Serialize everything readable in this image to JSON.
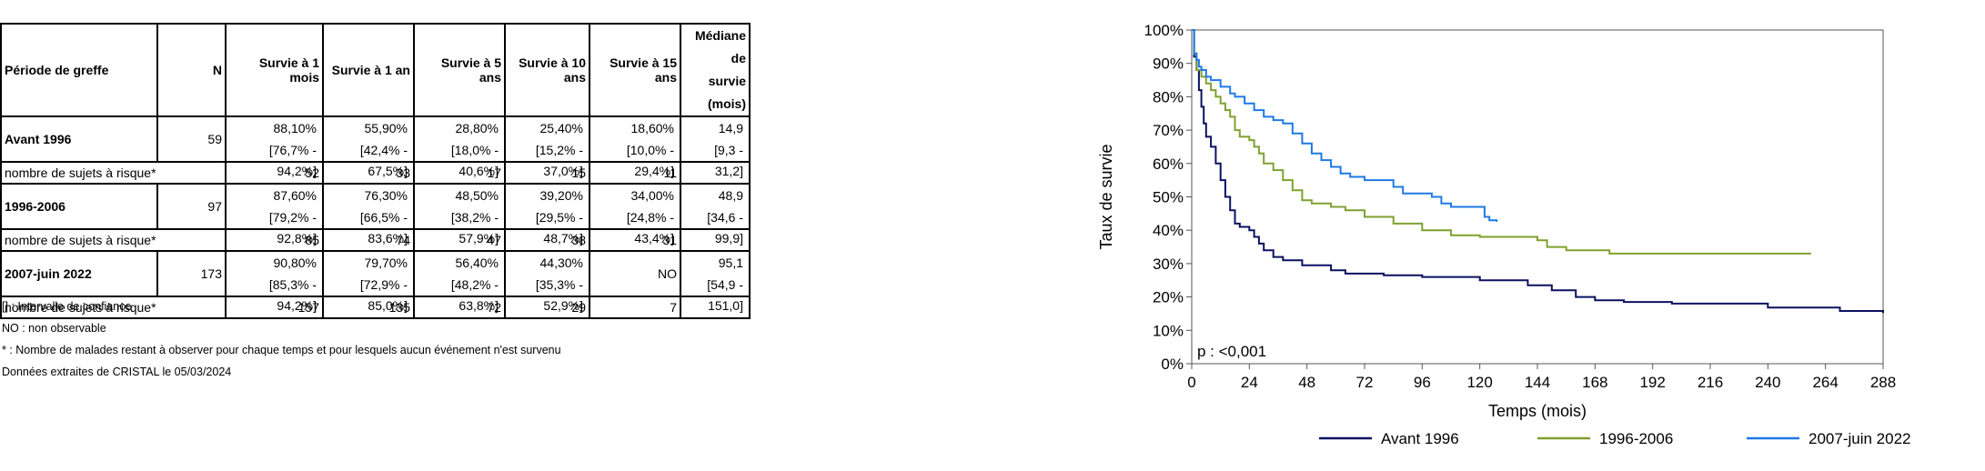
{
  "table": {
    "headers": [
      "Période de greffe",
      "N",
      "Survie à 1 mois",
      "Survie à 1 an",
      "Survie à 5 ans",
      "Survie à 10 ans",
      "Survie à 15 ans",
      "Médiane de",
      "survie (mois)"
    ],
    "risk_label": "nombre de sujets à risque*",
    "groups": [
      {
        "period": "Avant 1996",
        "n": "59",
        "estimates": [
          "88,10%",
          "55,90%",
          "28,80%",
          "25,40%",
          "18,60%",
          "14,9"
        ],
        "ci": [
          "[76,7% - 94,2%]",
          "[42,4% - 67,5%]",
          "[18,0% - 40,6%]",
          "[15,2% - 37,0%]",
          "[10,0% - 29,4%]",
          "[9,3 - 31,2]"
        ],
        "at_risk": [
          "52",
          "33",
          "17",
          "15",
          "11"
        ]
      },
      {
        "period": "1996-2006",
        "n": "97",
        "estimates": [
          "87,60%",
          "76,30%",
          "48,50%",
          "39,20%",
          "34,00%",
          "48,9"
        ],
        "ci": [
          "[79,2% - 92,8%]",
          "[66,5% - 83,6%]",
          "[38,2% - 57,9%]",
          "[29,5% - 48,7%]",
          "[24,8% - 43,4%]",
          "[34,6 - 99,9]"
        ],
        "at_risk": [
          "85",
          "74",
          "47",
          "38",
          "31"
        ]
      },
      {
        "period": "2007-juin 2022",
        "n": "173",
        "estimates": [
          "90,80%",
          "79,70%",
          "56,40%",
          "44,30%",
          "NO",
          "95,1"
        ],
        "ci": [
          "[85,3% - 94,2%]",
          "[72,9% - 85,0%]",
          "[48,2% - 63,8%]",
          "[35,3% - 52,9%]",
          "",
          "[54,9 - 151,0]"
        ],
        "at_risk": [
          "157",
          "135",
          "72",
          "29",
          "7"
        ]
      }
    ]
  },
  "notes": [
    "[] : Intervalle de confiance",
    "NO : non observable",
    "* : Nombre de malades restant à observer pour chaque temps et pour lesquels aucun événement n'est survenu",
    "Données extraites de CRISTAL le 05/03/2024"
  ],
  "chart_data": {
    "type": "line",
    "xlabel": "Temps (mois)",
    "ylabel": "Taux de survie",
    "xlim": [
      0,
      288
    ],
    "ylim": [
      0,
      100
    ],
    "x_ticks": [
      "0",
      "24",
      "48",
      "72",
      "96",
      "120",
      "144",
      "168",
      "192",
      "216",
      "240",
      "264",
      "288"
    ],
    "y_ticks": [
      "0%",
      "10%",
      "20%",
      "30%",
      "40%",
      "50%",
      "60%",
      "70%",
      "80%",
      "90%",
      "100%"
    ],
    "annotation": "p : <0,001",
    "legend_position": "bottom",
    "grid": false,
    "series": [
      {
        "name": "Avant 1996",
        "color": "#0b1160",
        "points": [
          [
            0,
            100
          ],
          [
            1,
            92
          ],
          [
            2,
            88
          ],
          [
            3,
            82
          ],
          [
            4,
            77
          ],
          [
            5,
            72
          ],
          [
            6,
            68
          ],
          [
            8,
            65
          ],
          [
            10,
            60
          ],
          [
            12,
            55
          ],
          [
            14,
            50
          ],
          [
            16,
            46
          ],
          [
            18,
            42
          ],
          [
            20,
            41
          ],
          [
            24,
            40
          ],
          [
            26,
            38
          ],
          [
            28,
            36
          ],
          [
            30,
            34
          ],
          [
            34,
            32
          ],
          [
            38,
            31
          ],
          [
            46,
            29.5
          ],
          [
            58,
            28
          ],
          [
            64,
            27
          ],
          [
            80,
            26.5
          ],
          [
            96,
            26
          ],
          [
            120,
            25
          ],
          [
            140,
            23.5
          ],
          [
            150,
            22
          ],
          [
            160,
            20
          ],
          [
            168,
            19
          ],
          [
            180,
            18.5
          ],
          [
            200,
            18
          ],
          [
            240,
            16.8
          ],
          [
            270,
            15.8
          ],
          [
            288,
            15.2
          ]
        ]
      },
      {
        "name": "1996-2006",
        "color": "#7fa12f",
        "points": [
          [
            0,
            100
          ],
          [
            1,
            93
          ],
          [
            2,
            88
          ],
          [
            4,
            86
          ],
          [
            6,
            84
          ],
          [
            8,
            82
          ],
          [
            10,
            80
          ],
          [
            12,
            78
          ],
          [
            14,
            76
          ],
          [
            16,
            74
          ],
          [
            18,
            70
          ],
          [
            20,
            68
          ],
          [
            24,
            67
          ],
          [
            26,
            65
          ],
          [
            28,
            63
          ],
          [
            30,
            60
          ],
          [
            34,
            58
          ],
          [
            38,
            55
          ],
          [
            42,
            52
          ],
          [
            46,
            49
          ],
          [
            50,
            48
          ],
          [
            58,
            47
          ],
          [
            64,
            46
          ],
          [
            72,
            44
          ],
          [
            84,
            42
          ],
          [
            96,
            40
          ],
          [
            108,
            38.5
          ],
          [
            120,
            38
          ],
          [
            144,
            37
          ],
          [
            148,
            35
          ],
          [
            156,
            34
          ],
          [
            170,
            34
          ],
          [
            174,
            33
          ],
          [
            190,
            33
          ],
          [
            220,
            33
          ],
          [
            258,
            33
          ]
        ]
      },
      {
        "name": "2007-juin 2022",
        "color": "#1e7ae6",
        "points": [
          [
            0,
            100
          ],
          [
            1,
            93
          ],
          [
            2,
            91
          ],
          [
            3,
            89
          ],
          [
            4,
            88
          ],
          [
            6,
            86
          ],
          [
            8,
            85
          ],
          [
            12,
            83
          ],
          [
            16,
            81
          ],
          [
            18,
            80
          ],
          [
            22,
            78
          ],
          [
            26,
            76
          ],
          [
            30,
            74
          ],
          [
            34,
            73
          ],
          [
            38,
            72
          ],
          [
            42,
            69
          ],
          [
            46,
            66
          ],
          [
            50,
            63
          ],
          [
            54,
            61
          ],
          [
            58,
            59
          ],
          [
            62,
            57
          ],
          [
            66,
            56
          ],
          [
            72,
            55
          ],
          [
            80,
            55
          ],
          [
            84,
            53
          ],
          [
            88,
            51
          ],
          [
            94,
            51
          ],
          [
            100,
            50
          ],
          [
            104,
            48
          ],
          [
            108,
            47
          ],
          [
            114,
            47
          ],
          [
            120,
            47
          ],
          [
            122,
            44
          ],
          [
            124,
            43
          ],
          [
            127,
            42.5
          ]
        ]
      }
    ]
  }
}
